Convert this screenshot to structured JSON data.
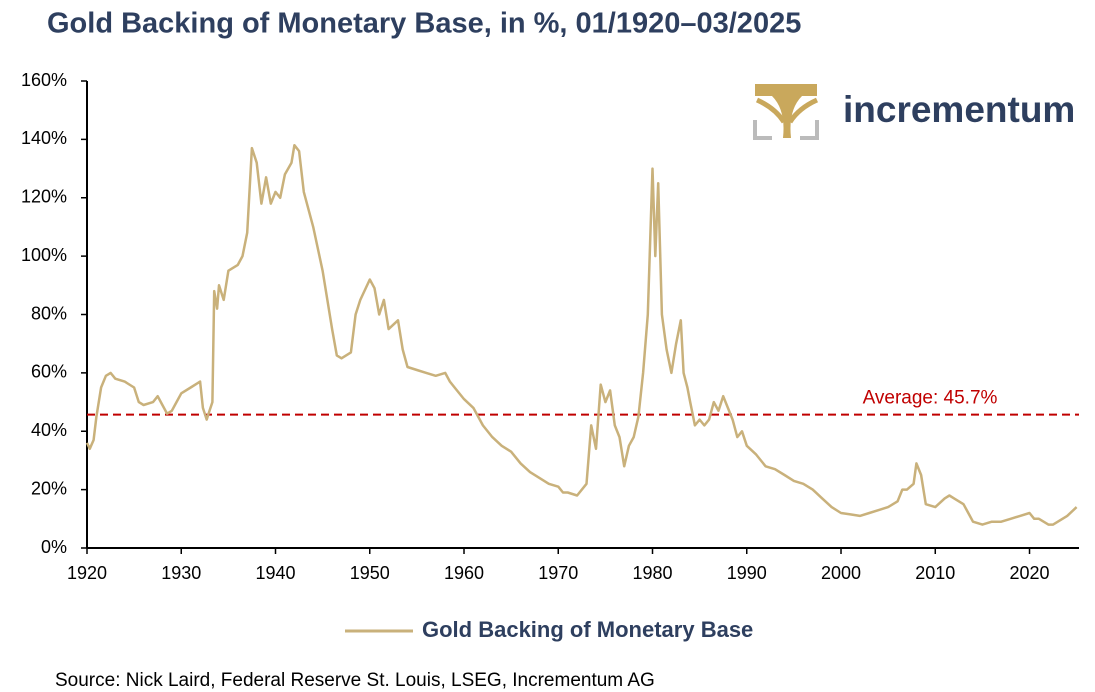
{
  "chart_data": {
    "type": "line",
    "title": "Gold Backing of Monetary Base, in %, 01/1920–03/2025",
    "brand": "incrementum",
    "source": "Source: Nick Laird, Federal Reserve St. Louis, LSEG, Incrementum AG",
    "x": [
      1920,
      1920.3,
      1920.7,
      1921,
      1921.5,
      1922,
      1922.5,
      1923,
      1924,
      1925,
      1925.5,
      1926,
      1927,
      1927.5,
      1928,
      1928.5,
      1929,
      1929.5,
      1930,
      1931,
      1932,
      1932.3,
      1932.7,
      1933,
      1933.3,
      1933.5,
      1933.8,
      1934,
      1934.5,
      1935,
      1936,
      1936.5,
      1937,
      1937.5,
      1938,
      1938.5,
      1939,
      1939.5,
      1940,
      1940.5,
      1941,
      1941.7,
      1942,
      1942.5,
      1943,
      1944,
      1945,
      1946,
      1946.5,
      1947,
      1948,
      1948.5,
      1949,
      1950,
      1950.5,
      1951,
      1951.5,
      1952,
      1953,
      1953.5,
      1954,
      1955,
      1956,
      1957,
      1958,
      1958.5,
      1959,
      1960,
      1961,
      1962,
      1963,
      1964,
      1965,
      1966,
      1967,
      1968,
      1969,
      1970,
      1970.5,
      1971,
      1972,
      1973,
      1973.5,
      1974,
      1974.5,
      1975,
      1975.5,
      1976,
      1976.5,
      1977,
      1977.5,
      1978,
      1978.5,
      1979,
      1979.5,
      1980,
      1980.3,
      1980.6,
      1981,
      1981.5,
      1982,
      1982.5,
      1983,
      1983.3,
      1983.7,
      1984,
      1984.5,
      1985,
      1985.5,
      1986,
      1986.5,
      1987,
      1987.5,
      1988,
      1988.5,
      1989,
      1989.5,
      1990,
      1991,
      1992,
      1993,
      1994,
      1995,
      1996,
      1997,
      1998,
      1999,
      2000,
      2001,
      2002,
      2003,
      2004,
      2005,
      2006,
      2006.5,
      2007,
      2007.7,
      2008,
      2008.5,
      2009,
      2010,
      2011,
      2011.5,
      2012,
      2013,
      2013.5,
      2014,
      2015,
      2016,
      2017,
      2018,
      2019,
      2020,
      2020.5,
      2021,
      2022,
      2022.5,
      2023,
      2024,
      2025
    ],
    "series": [
      {
        "name": "Gold Backing of Monetary Base",
        "color": "#c9b17b",
        "values": [
          36,
          34,
          37,
          45,
          55,
          59,
          60,
          58,
          57,
          55,
          50,
          49,
          50,
          52,
          49,
          46,
          47,
          50,
          53,
          55,
          57,
          48,
          44,
          47,
          50,
          88,
          82,
          90,
          85,
          95,
          97,
          100,
          108,
          137,
          132,
          118,
          127,
          118,
          122,
          120,
          128,
          132,
          138,
          136,
          122,
          110,
          95,
          75,
          66,
          65,
          67,
          80,
          85,
          92,
          89,
          80,
          85,
          75,
          78,
          68,
          62,
          61,
          60,
          59,
          60,
          57,
          55,
          51,
          48,
          42,
          38,
          35,
          33,
          29,
          26,
          24,
          22,
          21,
          19,
          19,
          18,
          22,
          42,
          34,
          56,
          50,
          54,
          42,
          38,
          28,
          35,
          38,
          45,
          60,
          80,
          130,
          100,
          125,
          80,
          68,
          60,
          70,
          78,
          60,
          55,
          50,
          42,
          44,
          42,
          44,
          50,
          47,
          52,
          48,
          44,
          38,
          40,
          35,
          32,
          28,
          27,
          25,
          23,
          22,
          20,
          17,
          14,
          12,
          11.5,
          11,
          12,
          13,
          14,
          16,
          20,
          20,
          22,
          29,
          25,
          15,
          14,
          17,
          18,
          17,
          15,
          12,
          9,
          8,
          9,
          9,
          10,
          11,
          12,
          10,
          10,
          8,
          8,
          9,
          11,
          14
        ]
      }
    ],
    "average": {
      "value": 45.7,
      "label": "Average: 45.7%",
      "color": "#c00000"
    },
    "xlim": [
      1920,
      2025.25
    ],
    "ylim": [
      0,
      160
    ],
    "xticks": [
      1920,
      1930,
      1940,
      1950,
      1960,
      1970,
      1980,
      1990,
      2000,
      2010,
      2020
    ],
    "yticks": [
      {
        "value": 0,
        "label": "0%"
      },
      {
        "value": 20,
        "label": "20%"
      },
      {
        "value": 40,
        "label": "40%"
      },
      {
        "value": 60,
        "label": "60%"
      },
      {
        "value": 80,
        "label": "80%"
      },
      {
        "value": 100,
        "label": "100%"
      },
      {
        "value": 120,
        "label": "120%"
      },
      {
        "value": 140,
        "label": "140%"
      },
      {
        "value": 160,
        "label": "160%"
      }
    ]
  }
}
